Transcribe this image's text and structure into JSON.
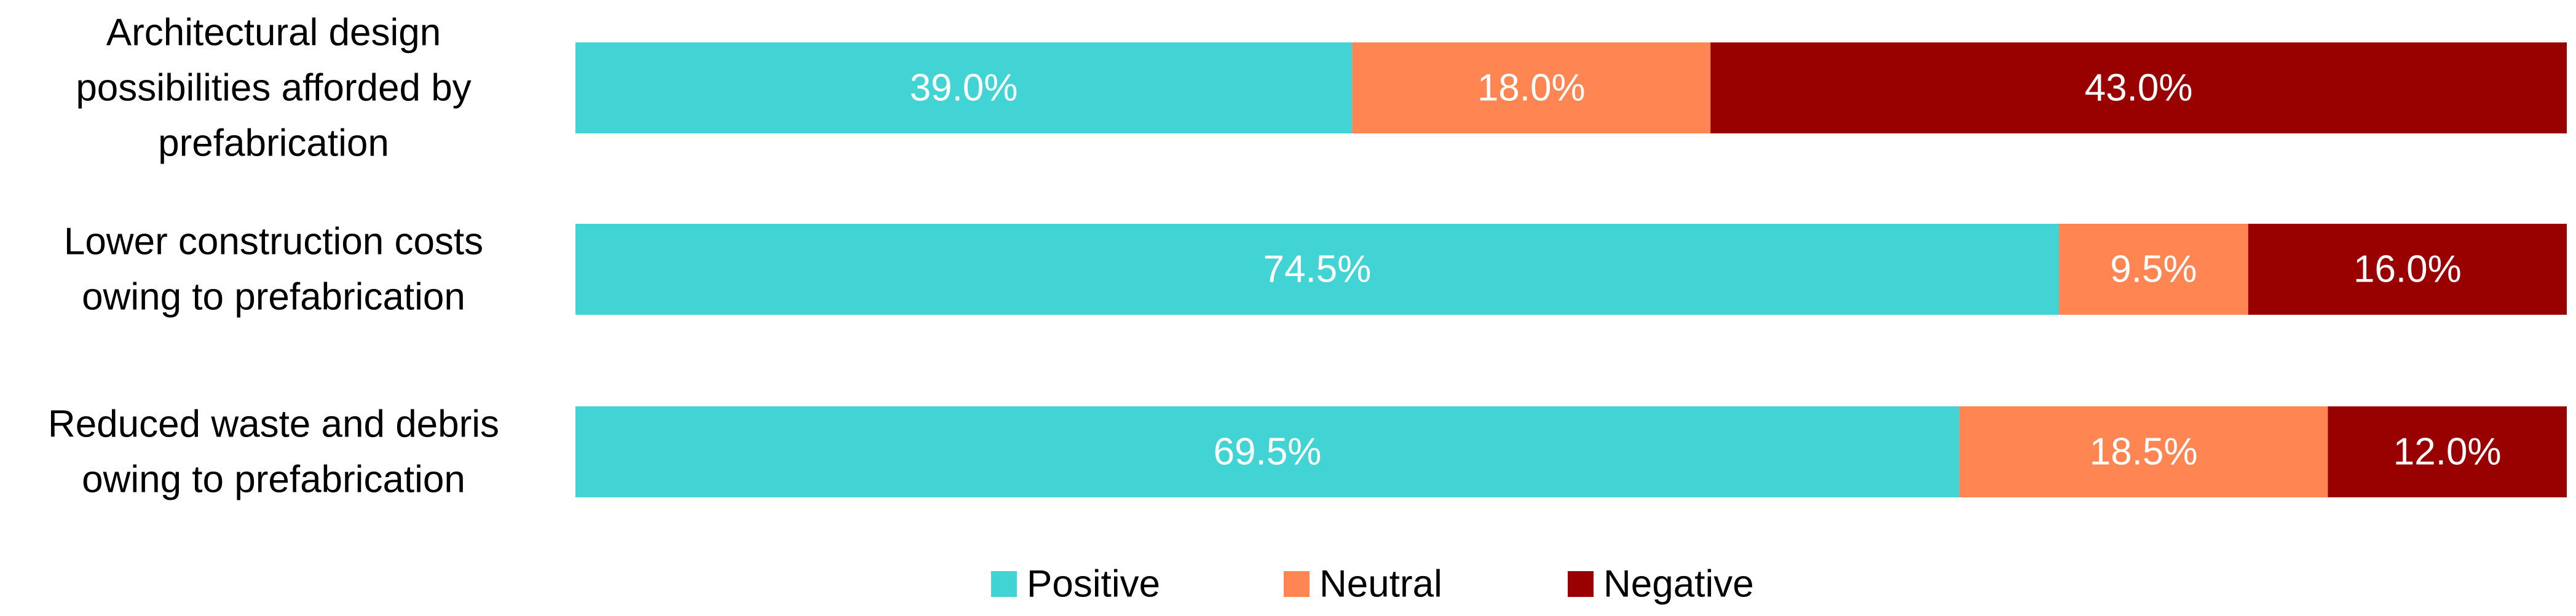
{
  "chart_data": {
    "type": "bar",
    "orientation": "horizontal",
    "stacked": true,
    "categories": [
      [
        "Architectural design",
        "possibilities afforded by",
        "prefabrication"
      ],
      [
        "Lower construction costs",
        "owing to prefabrication"
      ],
      [
        "Reduced waste and debris",
        "owing to prefabrication"
      ]
    ],
    "series": [
      {
        "name": "Positive",
        "color": "#42D4D4",
        "values": [
          39.0,
          74.5,
          69.5
        ]
      },
      {
        "name": "Neutral",
        "color": "#FF8552",
        "values": [
          18.0,
          9.5,
          18.5
        ]
      },
      {
        "name": "Negative",
        "color": "#990000",
        "values": [
          43.0,
          16.0,
          12.0
        ]
      }
    ],
    "value_format": "percent_1dp",
    "xlim": [
      0,
      100
    ],
    "legend_position": "bottom",
    "grid": false,
    "title": "",
    "xlabel": "",
    "ylabel": ""
  }
}
